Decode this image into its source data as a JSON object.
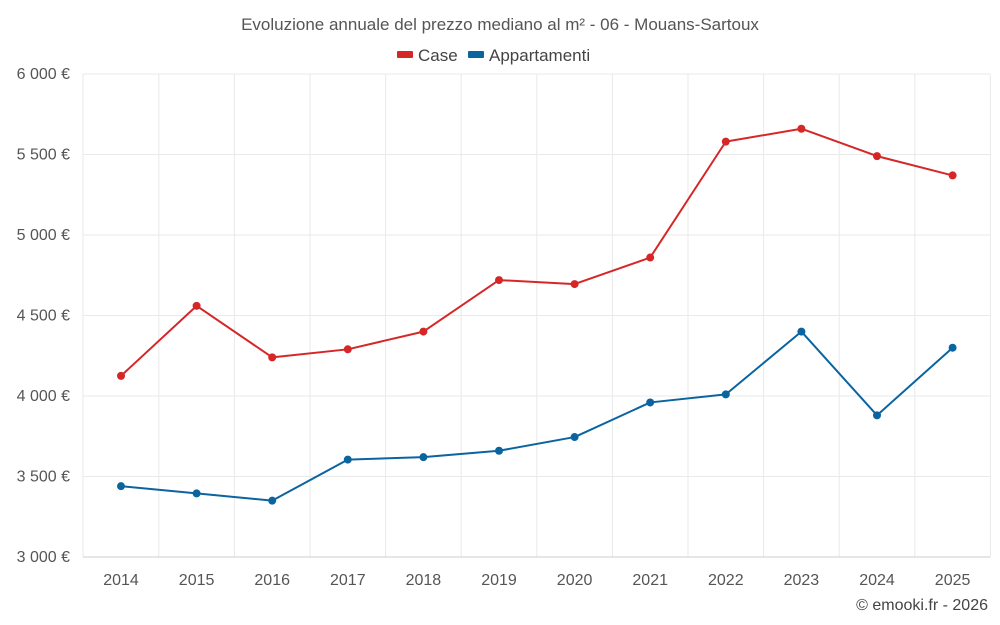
{
  "chart_data": {
    "type": "line",
    "title": "Evoluzione annuale del prezzo mediano al m² - 06 - Mouans-Sartoux",
    "categories": [
      "2014",
      "2015",
      "2016",
      "2017",
      "2018",
      "2019",
      "2020",
      "2021",
      "2022",
      "2023",
      "2024",
      "2025"
    ],
    "series": [
      {
        "name": "Case",
        "color": "#d62728",
        "values": [
          4125,
          4560,
          4240,
          4290,
          4400,
          4720,
          4695,
          4860,
          5580,
          5660,
          5490,
          5370
        ]
      },
      {
        "name": "Appartamenti",
        "color": "#0a64a0",
        "values": [
          3440,
          3395,
          3350,
          3605,
          3620,
          3660,
          3745,
          3960,
          4010,
          4400,
          3880,
          4300
        ]
      }
    ],
    "ylim": [
      3000,
      6000
    ],
    "yticks": [
      3000,
      3500,
      4000,
      4500,
      5000,
      5500,
      6000
    ],
    "ytick_labels": [
      "3 000 €",
      "3 500 €",
      "4 000 €",
      "4 500 €",
      "5 000 €",
      "5 500 €",
      "6 000 €"
    ],
    "xlabel": "",
    "ylabel": "",
    "grid": true,
    "legend_position": "top-center"
  },
  "credit": "© emooki.fr - 2026"
}
